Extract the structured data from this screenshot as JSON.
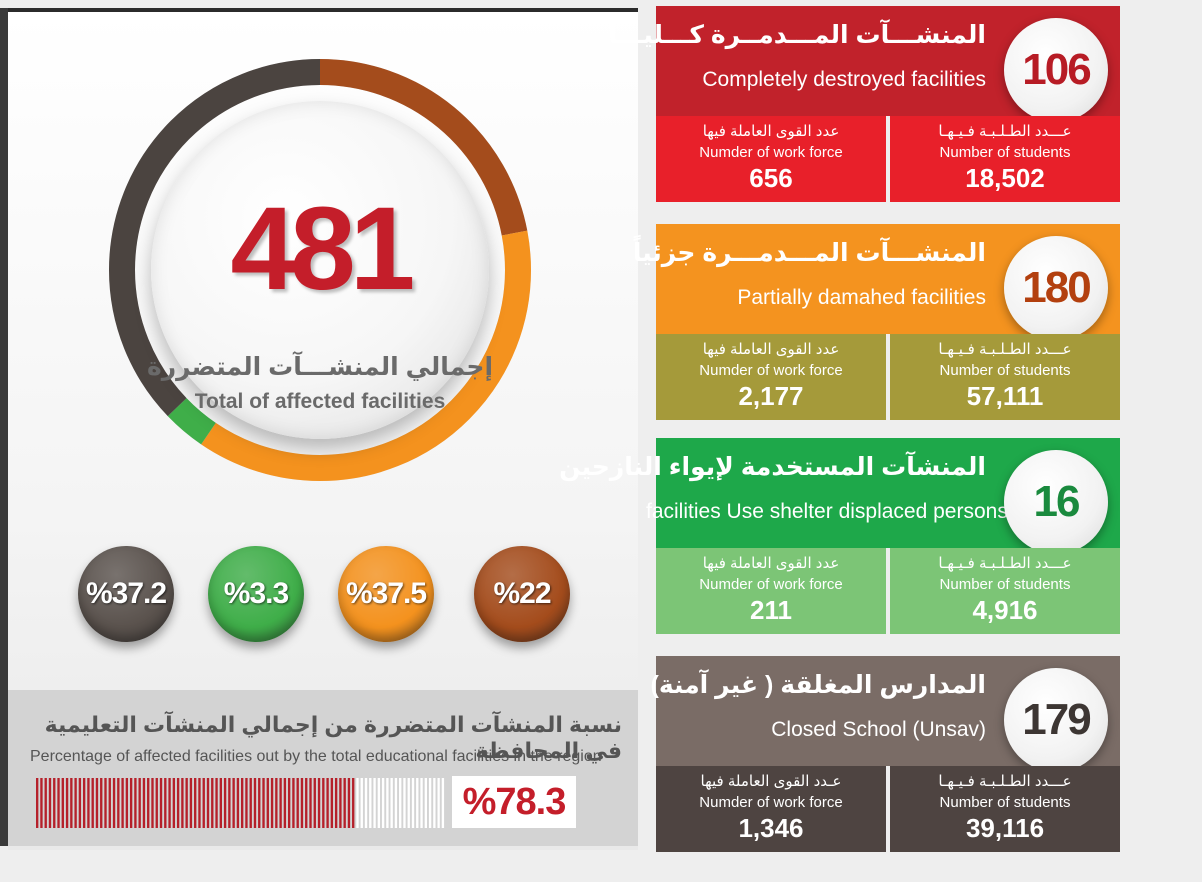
{
  "summary": {
    "total": "481",
    "total_label_ar": "إجمالي المنشـــآت المتضررة",
    "total_label_en": "Total of affected facilities"
  },
  "ring": {
    "segments": [
      {
        "name": "completely-destroyed",
        "percent": 22,
        "color": "#a44c1c"
      },
      {
        "name": "partially-damaged",
        "percent": 37.5,
        "color": "#f4921e"
      },
      {
        "name": "shelter",
        "percent": 3.3,
        "color": "#3fae49"
      },
      {
        "name": "closed",
        "percent": 37.2,
        "color": "#4b4440"
      }
    ]
  },
  "percent_circles": [
    {
      "label": "%37.2",
      "color": "#5a524d"
    },
    {
      "label": "%3.3",
      "color": "#3fae49"
    },
    {
      "label": "%37.5",
      "color": "#f4921e"
    },
    {
      "label": "%22",
      "color": "#a44c1c"
    }
  ],
  "percentage": {
    "label_ar": "نسبة المنشآت المتضررة من إجمالي المنشآت التعليمية في المحافظة",
    "label_en": "Percentage of affected facilities out by the total educational facilities in the region",
    "value": "%78.3",
    "fraction": 0.783
  },
  "cards": [
    {
      "title_ar": "المنشـــآت المـــدمــرة كـــليـــاً",
      "title_en": "Completely destroyed facilities",
      "count": "106",
      "top_color": "#c1222b",
      "bottom_color": "#e8202a",
      "number_color": "#b71c25",
      "workforce_ar": "عدد القوى العاملة فيها",
      "workforce_en": "Numder of work force",
      "workforce": "656",
      "students_ar": "عـــدد الطـلـبـة فـيـهـا",
      "students_en": "Number of students",
      "students": "18,502"
    },
    {
      "title_ar": "المنشـــآت المـــدمـــرة جزئياً",
      "title_en": "Partially   damahed   facilities",
      "count": "180",
      "top_color": "#f4931f",
      "bottom_color": "#a59a3a",
      "number_color": "#b3400f",
      "workforce_ar": "عدد القوى العاملة فيها",
      "workforce_en": "Numder of work force",
      "workforce": "2,177",
      "students_ar": "عـــدد الطـلـبـة فـيـهـا",
      "students_en": "Number of students",
      "students": "57,111"
    },
    {
      "title_ar": "المنشآت المستخدمة لإيواء النازحين",
      "title_en": "facilities Use shelter displaced persons",
      "count": "16",
      "top_color": "#1ea84a",
      "bottom_color": "#7cc576",
      "number_color": "#1a8a3e",
      "workforce_ar": "عدد القوى العاملة فيها",
      "workforce_en": "Numder of work force",
      "workforce": "211",
      "students_ar": "عـــدد الطـلـبـة فـيـهـا",
      "students_en": "Number of students",
      "students": "4,916"
    },
    {
      "title_ar": "المدارس المغلقة ( غير آمنة)",
      "title_en": "Closed School (Unsav)",
      "count": "179",
      "top_color": "#7a6c66",
      "bottom_color": "#4e4441",
      "number_color": "#3d3633",
      "workforce_ar": "عـدد القوى العاملة فيها",
      "workforce_en": "Numder of work force",
      "workforce": "1,346",
      "students_ar": "عـــدد الطـلـبـة فـيـهـا",
      "students_en": "Number of students",
      "students": "39,116"
    }
  ]
}
